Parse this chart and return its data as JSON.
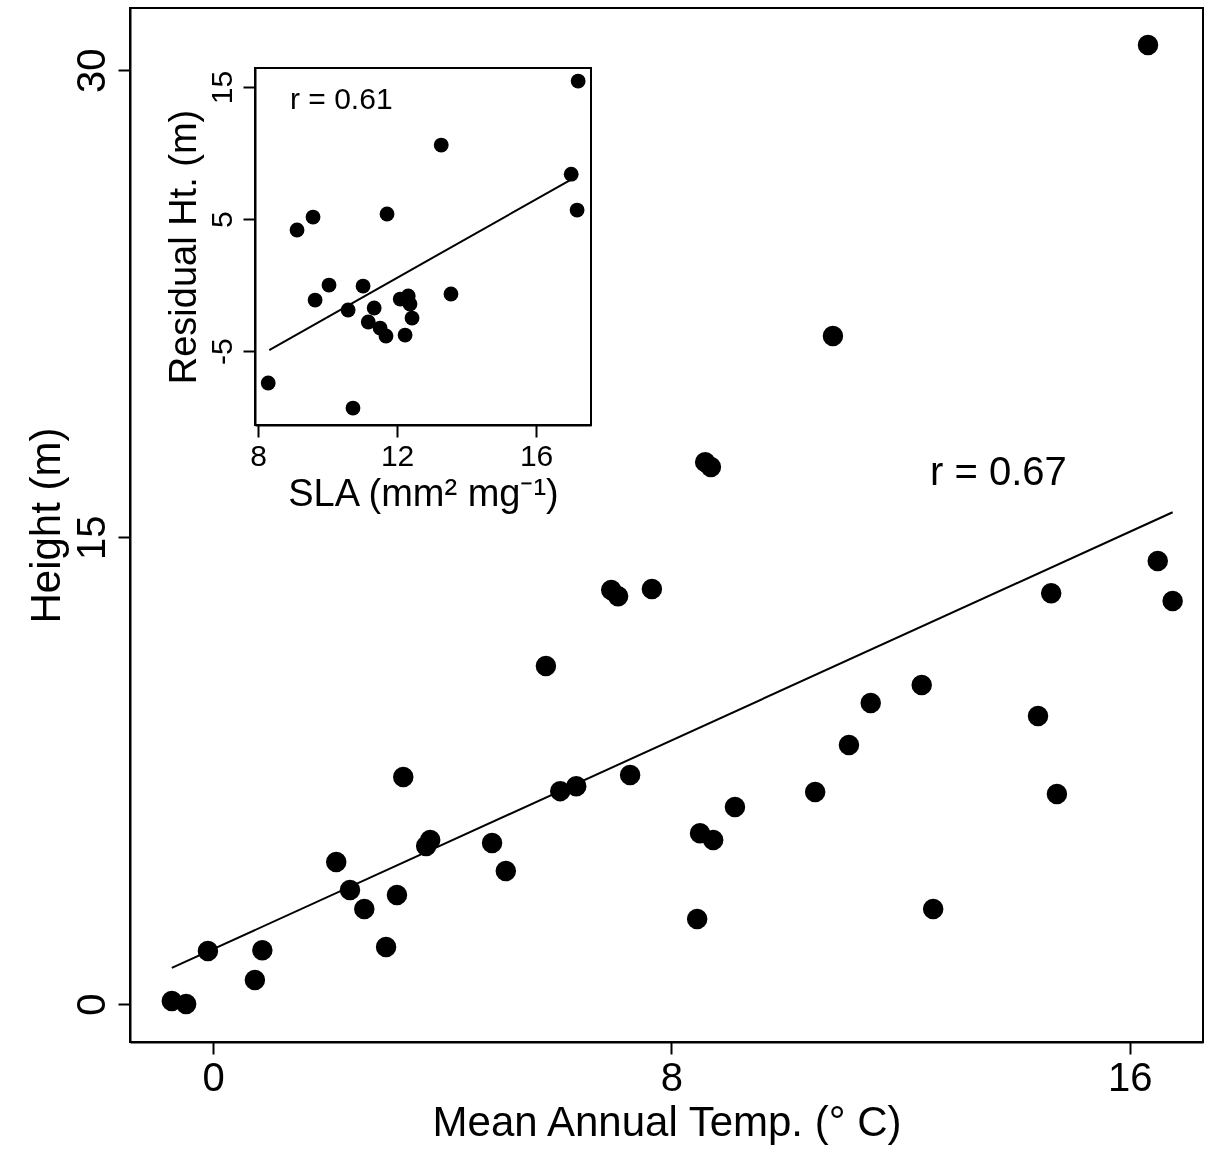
{
  "chart_data": [
    {
      "type": "scatter",
      "xlabel": "Mean Annual Temp. (° C)",
      "ylabel": "Height (m)",
      "xlim": [
        -1.45,
        17.28
      ],
      "ylim": [
        -1.22,
        32
      ],
      "xticks": [
        0,
        8,
        16
      ],
      "yticks": [
        0,
        15,
        30
      ],
      "grid": false,
      "marker": "circle",
      "annotations": [
        "r = 0.67"
      ],
      "series": [
        {
          "color": "#000000",
          "x": [
            -0.72,
            -0.47,
            -0.09,
            0.73,
            0.86,
            2.15,
            2.39,
            2.64,
            3.02,
            3.21,
            3.32,
            3.72,
            3.79,
            4.87,
            5.11,
            5.81,
            6.06,
            6.34,
            6.95,
            7.07,
            7.28,
            7.66,
            8.45,
            8.5,
            8.59,
            8.69,
            8.73,
            9.11,
            10.51,
            10.82,
            11.1,
            11.48,
            12.37,
            12.57,
            14.4,
            14.63,
            14.73,
            16.32,
            16.49,
            16.75
          ],
          "values": [
            0.1,
            0,
            1.7,
            0.77,
            1.73,
            4.56,
            3.66,
            3.05,
            1.83,
            3.5,
            7.29,
            5.08,
            5.27,
            5.17,
            4.27,
            10.86,
            6.84,
            7,
            13.3,
            13.1,
            7.36,
            13.33,
            2.73,
            5.49,
            17.41,
            17.25,
            5.27,
            6.33,
            6.81,
            21.46,
            8.32,
            9.67,
            10.25,
            3.05,
            9.25,
            13.2,
            6.75,
            30.81,
            14.23,
            12.95
          ]
        },
        {
          "type": "line",
          "marker": "none",
          "color": "#000000",
          "x": [
            -0.72,
            16.75
          ],
          "values": [
            1.16,
            15.8
          ]
        }
      ]
    },
    {
      "type": "scatter",
      "xlabel": "SLA (mm² mg⁻¹)",
      "ylabel": "Residual Ht. (m)",
      "xlim": [
        7.91,
        17.58
      ],
      "ylim": [
        -10.6,
        16.44
      ],
      "xticks": [
        8,
        12,
        16
      ],
      "yticks": [
        -5,
        5,
        15
      ],
      "grid": false,
      "marker": "circle",
      "annotations": [
        "r = 0.61"
      ],
      "series": [
        {
          "color": "#000000",
          "x": [
            17.21,
            13.27,
            17.01,
            17.18,
            11.71,
            9.58,
            9.12,
            10.04,
            11.02,
            9.64,
            10.59,
            11.34,
            12.09,
            12.32,
            12.37,
            13.55,
            11.17,
            11.51,
            11.68,
            12.23,
            12.43,
            8.29,
            10.73
          ],
          "values": [
            15.45,
            10.6,
            8.4,
            5.68,
            5.38,
            5.15,
            4.17,
            0,
            -0.08,
            -1.14,
            -1.89,
            -1.74,
            -1.06,
            -0.83,
            -1.44,
            -0.68,
            -2.8,
            -3.26,
            -3.86,
            -3.79,
            -2.5,
            -7.42,
            -9.32
          ]
        },
        {
          "type": "line",
          "marker": "none",
          "color": "#000000",
          "x": [
            8.32,
            16.98
          ],
          "values": [
            -4.92,
            7.95
          ]
        }
      ]
    }
  ]
}
